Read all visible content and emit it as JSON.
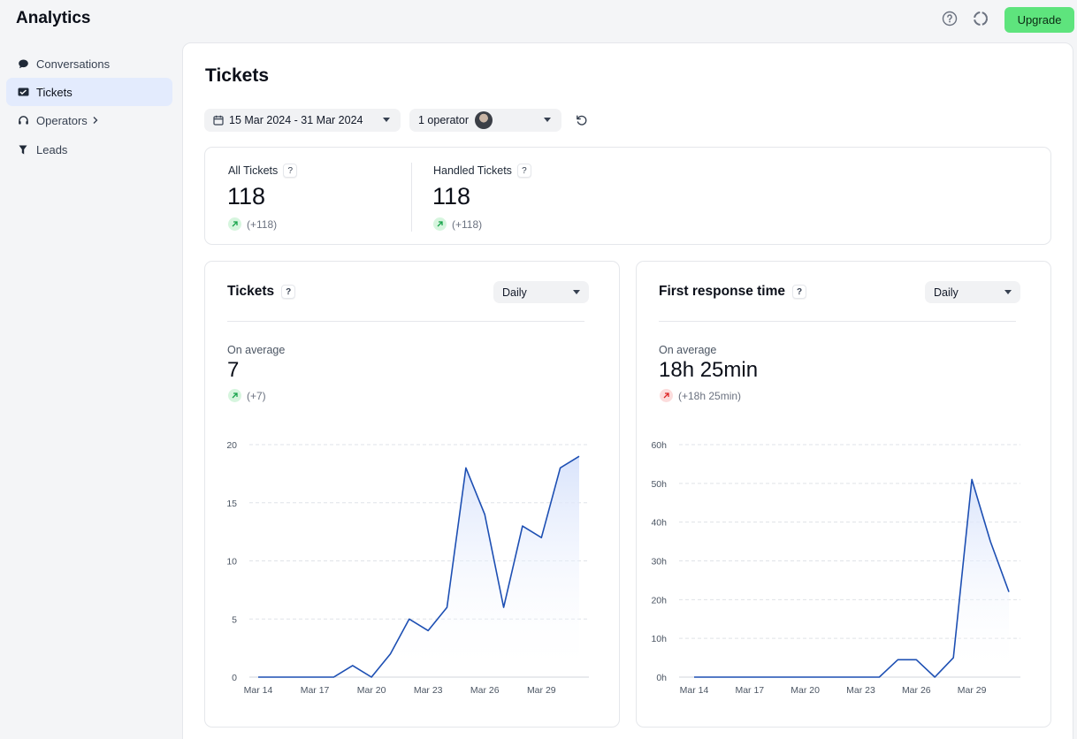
{
  "app": {
    "title": "Analytics",
    "upgrade_label": "Upgrade"
  },
  "sidebar": {
    "items": [
      {
        "label": "Conversations",
        "icon": "chat-bubble-icon",
        "active": false
      },
      {
        "label": "Tickets",
        "icon": "ticket-icon",
        "active": true
      },
      {
        "label": "Operators",
        "icon": "headset-icon",
        "active": false,
        "has_submenu": true
      },
      {
        "label": "Leads",
        "icon": "funnel-icon",
        "active": false
      }
    ]
  },
  "page": {
    "title": "Tickets",
    "date_range": "15 Mar 2024 - 31 Mar 2024",
    "operators": "1 operator"
  },
  "stats": [
    {
      "label": "All Tickets",
      "value": "118",
      "delta": "(+118)",
      "trend": "up"
    },
    {
      "label": "Handled Tickets",
      "value": "118",
      "delta": "(+118)",
      "trend": "up"
    }
  ],
  "charts": {
    "tickets": {
      "title": "Tickets",
      "period": "Daily",
      "avg_label": "On average",
      "avg_value": "7",
      "avg_delta": "(+7)"
    },
    "response": {
      "title": "First response time",
      "period": "Daily",
      "avg_label": "On average",
      "avg_value": "18h 25min",
      "avg_delta": "(+18h 25min)"
    }
  },
  "colors": {
    "line": "#1d4fb3",
    "fill_top": "#d7e2fb",
    "accent": "#5ee47d",
    "active_nav": "#e3ebfd"
  },
  "chart_data": [
    {
      "type": "area",
      "title": "Tickets",
      "x": [
        "Mar 14",
        "Mar 15",
        "Mar 16",
        "Mar 17",
        "Mar 18",
        "Mar 19",
        "Mar 20",
        "Mar 21",
        "Mar 22",
        "Mar 23",
        "Mar 24",
        "Mar 25",
        "Mar 26",
        "Mar 27",
        "Mar 28",
        "Mar 29",
        "Mar 30",
        "Mar 31"
      ],
      "tick_labels": [
        "Mar 14",
        "Mar 17",
        "Mar 20",
        "Mar 23",
        "Mar 26",
        "Mar 29"
      ],
      "y_ticks": [
        "0",
        "5",
        "10",
        "15",
        "20"
      ],
      "values": [
        0,
        0,
        0,
        0,
        0,
        1,
        0,
        2,
        5,
        4,
        6,
        18,
        14,
        6,
        13,
        12,
        18,
        19
      ],
      "ylim": [
        0,
        20
      ],
      "grid": true
    },
    {
      "type": "area",
      "title": "First response time",
      "x": [
        "Mar 14",
        "Mar 15",
        "Mar 16",
        "Mar 17",
        "Mar 18",
        "Mar 19",
        "Mar 20",
        "Mar 21",
        "Mar 22",
        "Mar 23",
        "Mar 24",
        "Mar 25",
        "Mar 26",
        "Mar 27",
        "Mar 28",
        "Mar 29",
        "Mar 30",
        "Mar 31"
      ],
      "tick_labels": [
        "Mar 14",
        "Mar 17",
        "Mar 20",
        "Mar 23",
        "Mar 26",
        "Mar 29"
      ],
      "y_ticks": [
        "0h",
        "10h",
        "20h",
        "30h",
        "40h",
        "50h",
        "60h"
      ],
      "values": [
        0,
        0,
        0,
        0,
        0,
        0,
        0,
        0,
        0,
        0,
        0,
        4.5,
        4.5,
        0,
        5,
        51,
        35,
        22
      ],
      "ylim": [
        0,
        60
      ],
      "grid": true
    }
  ]
}
